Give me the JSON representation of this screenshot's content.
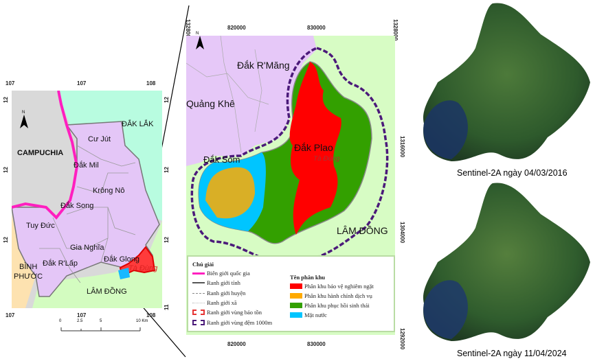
{
  "overview_map": {
    "lon_ticks": [
      "107",
      "107",
      "108"
    ],
    "lat_ticks": [
      "12",
      "12",
      "12",
      "11"
    ],
    "labels": {
      "dak_lak": "ĐẮK LẮK",
      "campuchia": "CAMPUCHIA",
      "cu_jut": "Cư Jút",
      "dak_mil": "Đắk Mil",
      "krong_no": "Krông Nô",
      "dak_song": "Đắk Song",
      "tuy_duc": "Tuy Đức",
      "gia_nghia": "Gia Nghĩa",
      "dak_rlap": "Đắk R'Lấp",
      "dak_glong": "Đắk Glong",
      "ta_dung": "Tà Đùng",
      "binh_phuoc_1": "BÌNH",
      "binh_phuoc_2": "PHƯỚC",
      "lam_dong": "LÂM ĐỒNG"
    },
    "north": "N",
    "scale_bar": [
      "0",
      "2.5",
      "5",
      "10 Km"
    ]
  },
  "detail_map": {
    "x_ticks": [
      "820000",
      "830000"
    ],
    "y_ticks": [
      "1328000",
      "1316000",
      "1304000",
      "1292000"
    ],
    "north": "N",
    "labels": {
      "dak_rmang": "Đắk R'Măng",
      "quang_khe": "Quảng Khê",
      "dak_plao": "Đắk Plao",
      "dak_som": "Đắk Som",
      "ta_dung": "Tà Đùng",
      "lam_dong": "LÂM ĐỒNG"
    },
    "legend": {
      "title": "Chú giải",
      "lines": [
        {
          "label": "Biên giới quốc gia",
          "color": "#ff1fbf"
        },
        {
          "label": "Ranh giới tỉnh",
          "color": "#555555"
        },
        {
          "label": "Ranh giới huyện",
          "color": "#888888"
        },
        {
          "label": "Ranh giới xã",
          "color": "#bbbbbb"
        },
        {
          "label": "Ranh giới vùng bảo tồn",
          "color": "#e53333"
        },
        {
          "label": "Ranh giới vùng đệm 1000m",
          "color": "#4b1a7a"
        }
      ],
      "zones_title": "Tên phân khu",
      "zones": [
        {
          "label": "Phân khu bảo vệ nghiêm ngặt",
          "color": "#ff0000"
        },
        {
          "label": "Phân khu hành chính dịch vụ",
          "color": "#ffaa00"
        },
        {
          "label": "Phân khu phục hồi sinh thái",
          "color": "#33a000"
        },
        {
          "label": "Mặt nước",
          "color": "#00c5ff"
        }
      ]
    }
  },
  "satellite": [
    {
      "caption": "Sentinel-2A ngày 04/03/2016"
    },
    {
      "caption": "Sentinel-2A ngày 11/04/2024"
    }
  ]
}
